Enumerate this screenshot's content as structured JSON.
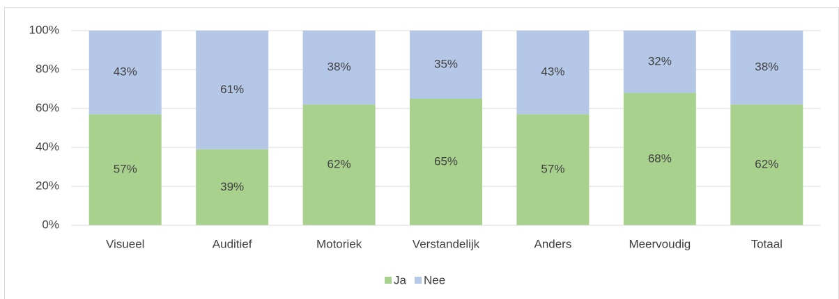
{
  "chart_data": {
    "type": "stacked_bar",
    "categories": [
      "Visueel",
      "Auditief",
      "Motoriek",
      "Verstandelijk",
      "Anders",
      "Meervoudig",
      "Totaal"
    ],
    "series": [
      {
        "name": "Ja",
        "color": "#a9d18e",
        "values": [
          57,
          39,
          62,
          65,
          57,
          68,
          62
        ],
        "value_labels": [
          "57%",
          "39%",
          "62%",
          "65%",
          "57%",
          "68%",
          "62%"
        ]
      },
      {
        "name": "Nee",
        "color": "#b4c7e7",
        "values": [
          43,
          61,
          38,
          35,
          43,
          32,
          38
        ],
        "value_labels": [
          "43%",
          "61%",
          "38%",
          "35%",
          "43%",
          "32%",
          "38%"
        ]
      }
    ],
    "ylim": [
      0,
      100
    ],
    "yticks": [
      {
        "value": 0,
        "label": "0%"
      },
      {
        "value": 20,
        "label": "20%"
      },
      {
        "value": 40,
        "label": "40%"
      },
      {
        "value": 60,
        "label": "60%"
      },
      {
        "value": 80,
        "label": "80%"
      },
      {
        "value": 100,
        "label": "100%"
      }
    ],
    "grid": true,
    "legend": "bottom"
  }
}
